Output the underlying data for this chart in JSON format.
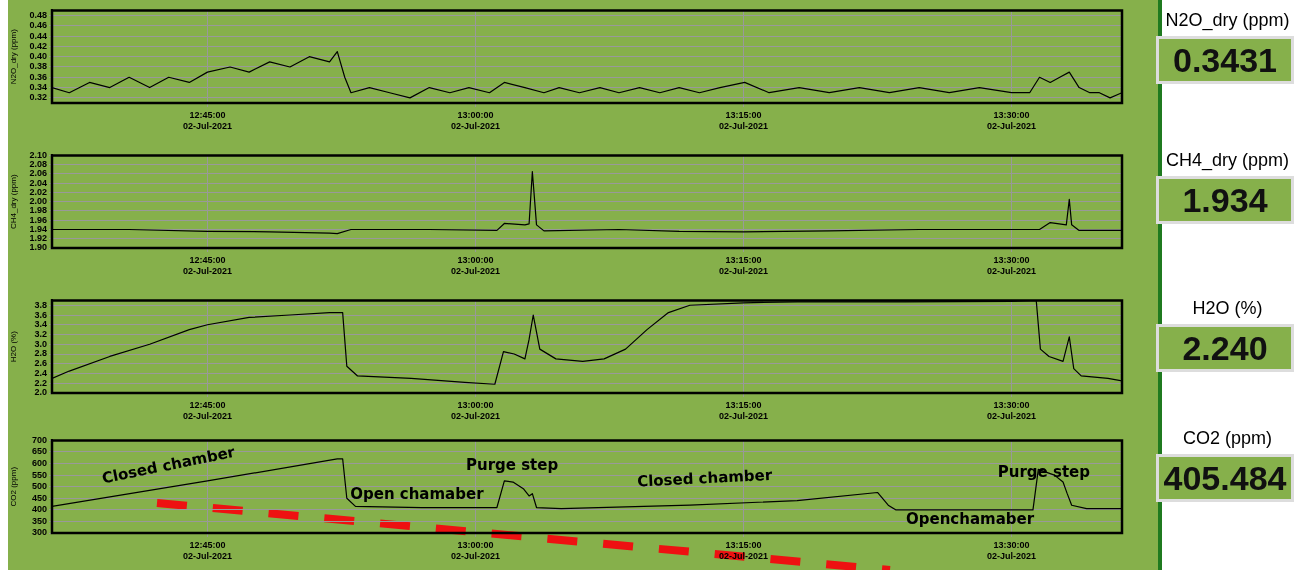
{
  "chart_data": [
    {
      "type": "line",
      "ylabel": "N2O_dry (ppm)",
      "xlim": [
        "2021-07-02T12:36:18",
        "2021-07-02T13:36:11"
      ],
      "xticks": [
        {
          "value": "2021-07-02T12:45",
          "label": "12:45:00\n02-Jul-2021"
        },
        {
          "value": "2021-07-02T13:00",
          "label": "13:00:00\n02-Jul-2021"
        },
        {
          "value": "2021-07-02T13:15",
          "label": "13:15:00\n02-Jul-2021"
        },
        {
          "value": "2021-07-02T13:30",
          "label": "13:30:00\n02-Jul-2021"
        }
      ],
      "ylim": [
        0.31,
        0.49
      ],
      "yticks": [
        0.32,
        0.34,
        0.36,
        0.38,
        {
          "value": 0.4,
          "label": "0.40"
        },
        0.42,
        0.44,
        0.46,
        0.48
      ],
      "grid": true,
      "series": [
        {
          "color": "#000000",
          "x": [
            "2021-07-02T12:36:18",
            "2021-07-02T12:37:16",
            "2021-07-02T12:38:24",
            "2021-07-02T12:39:32",
            "2021-07-02T12:40:37",
            "2021-07-02T12:41:46",
            "2021-07-02T12:42:50",
            "2021-07-02T12:43:59",
            "2021-07-02T12:45:00",
            "2021-07-02T12:46:16",
            "2021-07-02T12:47:20",
            "2021-07-02T12:48:29",
            "2021-07-02T12:49:37",
            "2021-07-02T12:50:42",
            "2021-07-02T12:51:50",
            "2021-07-02T12:52:16",
            "2021-07-02T12:52:41",
            "2021-07-02T12:53:02",
            "2021-07-02T12:54:04",
            "2021-07-02T12:55:12",
            "2021-07-02T12:56:20",
            "2021-07-02T12:57:25",
            "2021-07-02T12:58:34",
            "2021-07-02T12:59:38",
            "2021-07-02T13:00:47",
            "2021-07-02T13:01:37",
            "2021-07-02T13:02:46",
            "2021-07-02T13:03:50",
            "2021-07-02T13:04:41",
            "2021-07-02T13:05:49",
            "2021-07-02T13:06:58",
            "2021-07-02T13:08:02",
            "2021-07-02T13:09:11",
            "2021-07-02T13:10:19",
            "2021-07-02T13:11:24",
            "2021-07-02T13:12:32",
            "2021-07-02T13:13:41",
            "2021-07-02T13:15:04",
            "2021-07-02T13:16:26",
            "2021-07-02T13:18:07",
            "2021-07-02T13:19:48",
            "2021-07-02T13:21:29",
            "2021-07-02T13:23:10",
            "2021-07-02T13:24:50",
            "2021-07-02T13:26:31",
            "2021-07-02T13:28:12",
            "2021-07-02T13:30:00",
            "2021-07-02T13:31:01",
            "2021-07-02T13:31:34",
            "2021-07-02T13:32:10",
            "2021-07-02T13:32:42",
            "2021-07-02T13:33:14",
            "2021-07-02T13:33:47",
            "2021-07-02T13:34:23",
            "2021-07-02T13:34:55",
            "2021-07-02T13:35:31",
            "2021-07-02T13:36:11"
          ],
          "values": [
            0.34,
            0.33,
            0.35,
            0.34,
            0.36,
            0.34,
            0.36,
            0.35,
            0.37,
            0.38,
            0.37,
            0.39,
            0.38,
            0.4,
            0.39,
            0.41,
            0.36,
            0.33,
            0.34,
            0.33,
            0.32,
            0.34,
            0.33,
            0.34,
            0.33,
            0.35,
            0.34,
            0.33,
            0.34,
            0.33,
            0.34,
            0.33,
            0.34,
            0.33,
            0.34,
            0.33,
            0.34,
            0.35,
            0.33,
            0.34,
            0.33,
            0.34,
            0.33,
            0.34,
            0.33,
            0.34,
            0.33,
            0.33,
            0.36,
            0.35,
            0.36,
            0.37,
            0.34,
            0.33,
            0.33,
            0.32,
            0.33
          ]
        }
      ]
    },
    {
      "type": "line",
      "ylabel": "CH4_dry (ppm)",
      "xlim": [
        "2021-07-02T12:36:18",
        "2021-07-02T13:36:11"
      ],
      "xticks": [
        {
          "value": "2021-07-02T12:45",
          "label": "12:45:00\n02-Jul-2021"
        },
        {
          "value": "2021-07-02T13:00",
          "label": "13:00:00\n02-Jul-2021"
        },
        {
          "value": "2021-07-02T13:15",
          "label": "13:15:00\n02-Jul-2021"
        },
        {
          "value": "2021-07-02T13:30",
          "label": "13:30:00\n02-Jul-2021"
        }
      ],
      "ylim": [
        1.9,
        2.1
      ],
      "yticks": [
        {
          "value": 1.9,
          "label": "1.90"
        },
        1.92,
        1.94,
        1.96,
        1.98,
        {
          "value": 2,
          "label": "2.00"
        },
        2.02,
        2.04,
        2.06,
        2.08,
        {
          "value": 2.1,
          "label": "2.10"
        }
      ],
      "grid": true,
      "series": [
        {
          "color": "#000000",
          "x": [
            "2021-07-02T12:36:18",
            "2021-07-02T12:40:37",
            "2021-07-02T12:45:00",
            "2021-07-02T12:48:29",
            "2021-07-02T12:51:50",
            "2021-07-02T12:52:16",
            "2021-07-02T12:53:02",
            "2021-07-02T12:57:25",
            "2021-07-02T13:01:12",
            "2021-07-02T13:01:37",
            "2021-07-02T13:02:46",
            "2021-07-02T13:03:00",
            "2021-07-02T13:03:11",
            "2021-07-02T13:03:25",
            "2021-07-02T13:03:50",
            "2021-07-02T13:08:02",
            "2021-07-02T13:11:24",
            "2021-07-02T13:15:00",
            "2021-07-02T13:19:48",
            "2021-07-02T13:24:50",
            "2021-07-02T13:31:34",
            "2021-07-02T13:32:10",
            "2021-07-02T13:33:04",
            "2021-07-02T13:33:14",
            "2021-07-02T13:33:22",
            "2021-07-02T13:33:47",
            "2021-07-02T13:36:11"
          ],
          "values": [
            1.94,
            1.94,
            1.936,
            1.935,
            1.932,
            1.931,
            1.94,
            1.94,
            1.938,
            1.953,
            1.95,
            1.952,
            2.065,
            1.95,
            1.937,
            1.94,
            1.936,
            1.935,
            1.937,
            1.94,
            1.94,
            1.955,
            1.95,
            2.005,
            1.95,
            1.938,
            1.938
          ]
        }
      ]
    },
    {
      "type": "line",
      "ylabel": "H2O (%)",
      "xlim": [
        "2021-07-02T12:36:18",
        "2021-07-02T13:36:11"
      ],
      "xticks": [
        {
          "value": "2021-07-02T12:45",
          "label": "12:45:00\n02-Jul-2021"
        },
        {
          "value": "2021-07-02T13:00",
          "label": "13:00:00\n02-Jul-2021"
        },
        {
          "value": "2021-07-02T13:15",
          "label": "13:15:00\n02-Jul-2021"
        },
        {
          "value": "2021-07-02T13:30",
          "label": "13:30:00\n02-Jul-2021"
        }
      ],
      "ylim": [
        2,
        3.9
      ],
      "yticks": [
        {
          "value": 2,
          "label": "2.0"
        },
        2.2,
        2.4,
        2.6,
        2.8,
        {
          "value": 3,
          "label": "3.0"
        },
        3.2,
        3.4,
        3.6,
        3.8
      ],
      "grid": true,
      "series": [
        {
          "color": "#000000",
          "x": [
            "2021-07-02T12:36:18",
            "2021-07-02T12:37:16",
            "2021-07-02T12:39:32",
            "2021-07-02T12:41:46",
            "2021-07-02T12:43:59",
            "2021-07-02T12:45:00",
            "2021-07-02T12:47:20",
            "2021-07-02T12:49:37",
            "2021-07-02T12:51:50",
            "2021-07-02T12:52:34",
            "2021-07-02T12:52:48",
            "2021-07-02T12:53:24",
            "2021-07-02T12:56:24",
            "2021-07-02T12:59:24",
            "2021-07-02T13:01:05",
            "2021-07-02T13:01:34",
            "2021-07-02T13:02:10",
            "2021-07-02T13:02:46",
            "2021-07-02T13:03:00",
            "2021-07-02T13:03:14",
            "2021-07-02T13:03:36",
            "2021-07-02T13:04:30",
            "2021-07-02T13:06:00",
            "2021-07-02T13:07:12",
            "2021-07-02T13:08:24",
            "2021-07-02T13:09:36",
            "2021-07-02T13:10:48",
            "2021-07-02T13:12:00",
            "2021-07-02T13:15:00",
            "2021-07-02T13:18:00",
            "2021-07-02T13:24:00",
            "2021-07-02T13:30:00",
            "2021-07-02T13:31:23",
            "2021-07-02T13:31:37",
            "2021-07-02T13:32:06",
            "2021-07-02T13:32:53",
            "2021-07-02T13:33:14",
            "2021-07-02T13:33:29",
            "2021-07-02T13:33:54",
            "2021-07-02T13:35:24",
            "2021-07-02T13:36:11"
          ],
          "values": [
            2.3,
            2.45,
            2.75,
            3.0,
            3.3,
            3.4,
            3.55,
            3.6,
            3.65,
            3.65,
            2.55,
            2.35,
            2.3,
            2.22,
            2.18,
            2.85,
            2.8,
            2.7,
            3.1,
            3.6,
            2.9,
            2.7,
            2.65,
            2.7,
            2.9,
            3.3,
            3.65,
            3.8,
            3.85,
            3.87,
            3.87,
            3.88,
            3.9,
            2.9,
            2.75,
            2.65,
            3.15,
            2.5,
            2.35,
            2.3,
            2.25
          ]
        }
      ]
    },
    {
      "type": "line",
      "ylabel": "CO2 (ppm)",
      "xlim": [
        "2021-07-02T12:36:18",
        "2021-07-02T13:36:11"
      ],
      "xticks": [
        {
          "value": "2021-07-02T12:45",
          "label": "12:45:00\n02-Jul-2021"
        },
        {
          "value": "2021-07-02T13:00",
          "label": "13:00:00\n02-Jul-2021"
        },
        {
          "value": "2021-07-02T13:15",
          "label": "13:15:00\n02-Jul-2021"
        },
        {
          "value": "2021-07-02T13:30",
          "label": "13:30:00\n02-Jul-2021"
        }
      ],
      "ylim": [
        300,
        700
      ],
      "yticks": [
        300,
        350,
        400,
        450,
        500,
        550,
        600,
        650,
        700
      ],
      "grid": true,
      "series": [
        {
          "color": "#000000",
          "x": [
            "2021-07-02T12:36:18",
            "2021-07-02T12:45:00",
            "2021-07-02T12:52:16",
            "2021-07-02T12:52:34",
            "2021-07-02T12:52:48",
            "2021-07-02T12:53:17",
            "2021-07-02T12:57:00",
            "2021-07-02T13:01:12",
            "2021-07-02T13:01:37",
            "2021-07-02T13:02:06",
            "2021-07-02T13:02:42",
            "2021-07-02T13:03:00",
            "2021-07-02T13:03:11",
            "2021-07-02T13:03:25",
            "2021-07-02T13:04:48",
            "2021-07-02T13:12:00",
            "2021-07-02T13:18:00",
            "2021-07-02T13:22:30",
            "2021-07-02T13:23:06",
            "2021-07-02T13:23:31",
            "2021-07-02T13:31:12",
            "2021-07-02T13:31:30",
            "2021-07-02T13:32:24",
            "2021-07-02T13:32:53",
            "2021-07-02T13:33:07",
            "2021-07-02T13:33:22",
            "2021-07-02T13:34:12",
            "2021-07-02T13:36:11"
          ],
          "values": [
            415,
            525,
            620,
            620,
            450,
            415,
            410,
            410,
            525,
            520,
            490,
            460,
            470,
            410,
            405,
            420,
            440,
            475,
            420,
            400,
            400,
            575,
            550,
            520,
            470,
            420,
            405,
            405
          ]
        }
      ],
      "annotations": [
        "Closed chamber",
        "Open chamaber",
        "Purge step",
        "Closed chamber",
        "Purge step",
        "Openchamaber"
      ]
    },
    {
      "type": "other",
      "annotations": [
        "N2O_dry (ppm)",
        "0.3431",
        "CH4_dry (ppm)",
        "1.934",
        "H2O (%)",
        "2.240",
        "CO2 (ppm)",
        "405.484"
      ]
    }
  ]
}
